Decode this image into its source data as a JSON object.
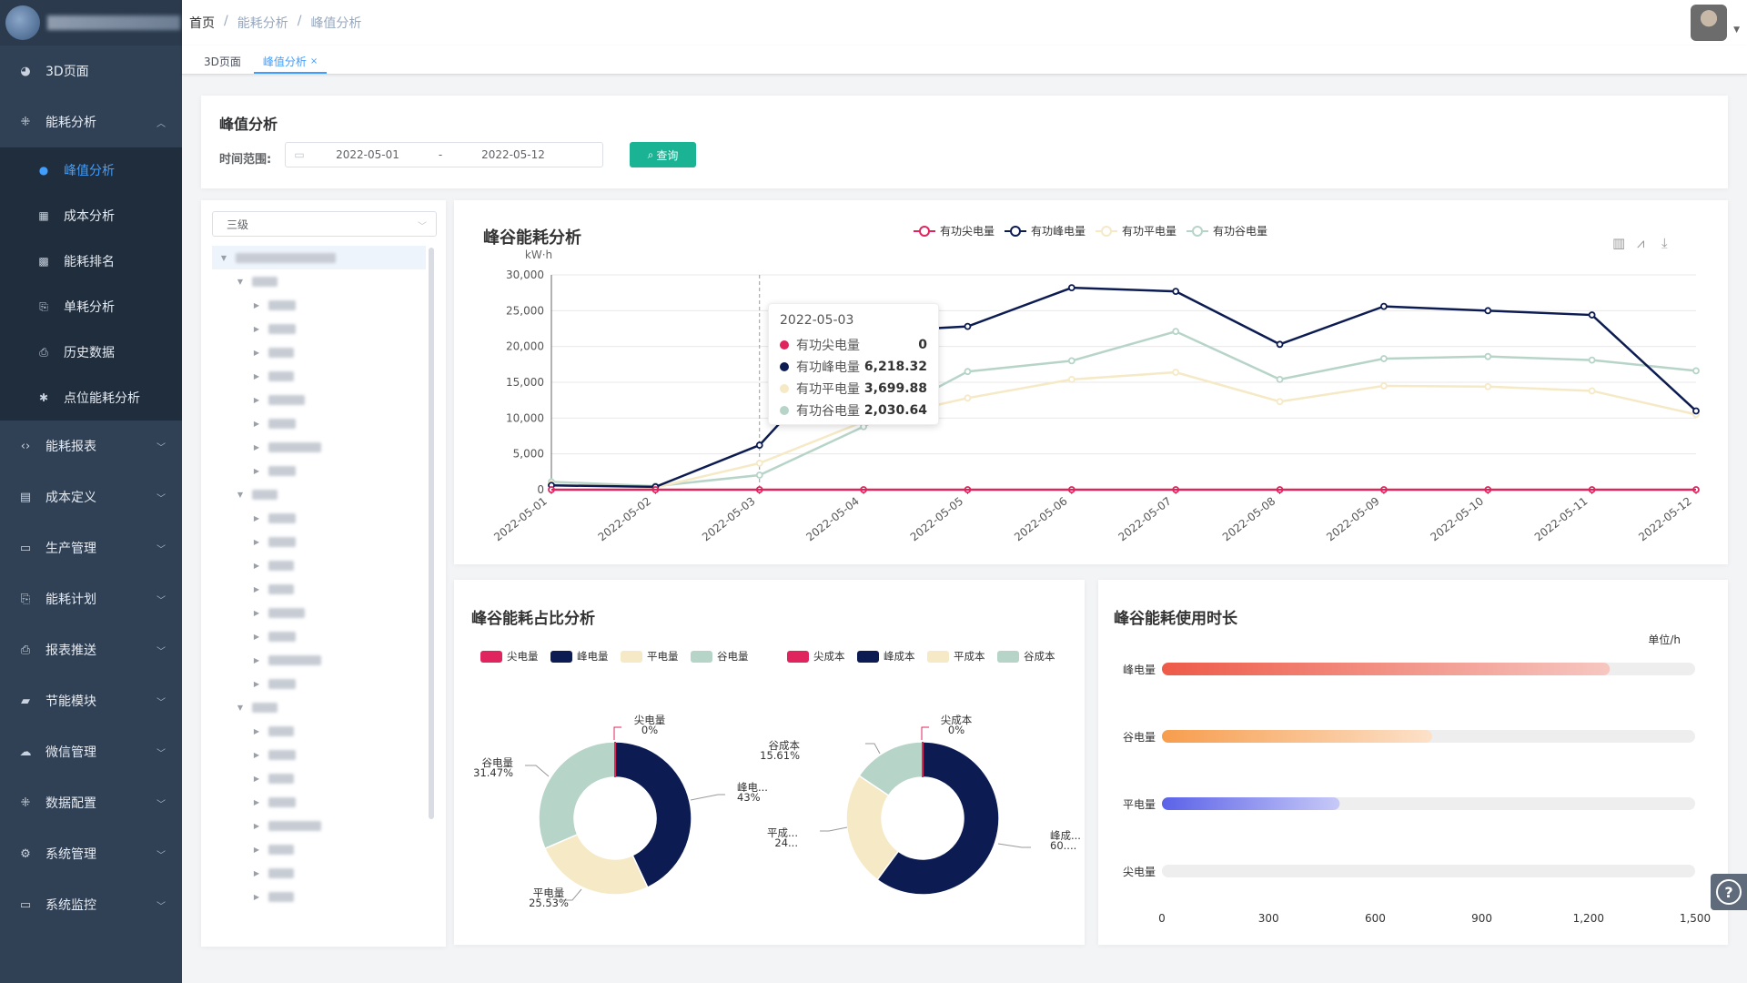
{
  "sidebar": {
    "menu": [
      {
        "label": "3D页面",
        "icon": "dashboard-icon",
        "glyph": "◕",
        "expanded": false,
        "has_arrow": false
      },
      {
        "label": "能耗分析",
        "icon": "analysis-icon",
        "glyph": "⁜",
        "expanded": true,
        "has_arrow": true,
        "children": [
          {
            "label": "峰值分析",
            "icon": "info-icon",
            "glyph": "●",
            "active": true
          },
          {
            "label": "成本分析",
            "icon": "table-icon",
            "glyph": "▦",
            "active": false
          },
          {
            "label": "能耗排名",
            "icon": "grid-icon",
            "glyph": "▩",
            "active": false
          },
          {
            "label": "单耗分析",
            "icon": "document-icon",
            "glyph": "⎘",
            "active": false
          },
          {
            "label": "历史数据",
            "icon": "file-icon",
            "glyph": "⎙",
            "active": false
          },
          {
            "label": "点位能耗分析",
            "icon": "bug-icon",
            "glyph": "✱",
            "active": false
          }
        ]
      },
      {
        "label": "能耗报表",
        "icon": "code-icon",
        "glyph": "‹›",
        "has_arrow": true
      },
      {
        "label": "成本定义",
        "icon": "book-icon",
        "glyph": "▤",
        "has_arrow": true
      },
      {
        "label": "生产管理",
        "icon": "monitor-icon",
        "glyph": "▭",
        "has_arrow": true
      },
      {
        "label": "能耗计划",
        "icon": "clipboard-icon",
        "glyph": "⎘",
        "has_arrow": true
      },
      {
        "label": "报表推送",
        "icon": "file-icon",
        "glyph": "⎙",
        "has_arrow": true
      },
      {
        "label": "节能模块",
        "icon": "lock-icon",
        "glyph": "▰",
        "has_arrow": true
      },
      {
        "label": "微信管理",
        "icon": "wechat-icon",
        "glyph": "☁",
        "has_arrow": true
      },
      {
        "label": "数据配置",
        "icon": "tools-icon",
        "glyph": "⁜",
        "has_arrow": true
      },
      {
        "label": "系统管理",
        "icon": "gear-icon",
        "glyph": "⚙",
        "has_arrow": true
      },
      {
        "label": "系统监控",
        "icon": "monitor-icon",
        "glyph": "▭",
        "has_arrow": true
      }
    ]
  },
  "breadcrumb": [
    "首页",
    "能耗分析",
    "峰值分析"
  ],
  "tags": [
    {
      "label": "3D页面",
      "active": false
    },
    {
      "label": "峰值分析",
      "active": true,
      "close": "×"
    }
  ],
  "filter": {
    "title": "峰值分析",
    "label": "时间范围:",
    "start_date": "2022-05-01",
    "separator": "-",
    "end_date": "2022-05-12",
    "query_label": "查询"
  },
  "tree": {
    "select_value": "三级",
    "nodes": [
      {
        "level": 0,
        "expanded": true,
        "w": 110
      },
      {
        "level": 1,
        "expanded": true,
        "w": 28
      },
      {
        "level": 2,
        "w": 30
      },
      {
        "level": 2,
        "w": 30
      },
      {
        "level": 2,
        "w": 28
      },
      {
        "level": 2,
        "w": 28
      },
      {
        "level": 2,
        "w": 40
      },
      {
        "level": 2,
        "w": 30
      },
      {
        "level": 2,
        "w": 58
      },
      {
        "level": 2,
        "w": 30
      },
      {
        "level": 1,
        "expanded": true,
        "w": 28
      },
      {
        "level": 2,
        "w": 30
      },
      {
        "level": 2,
        "w": 30
      },
      {
        "level": 2,
        "w": 28
      },
      {
        "level": 2,
        "w": 28
      },
      {
        "level": 2,
        "w": 40
      },
      {
        "level": 2,
        "w": 30
      },
      {
        "level": 2,
        "w": 58
      },
      {
        "level": 2,
        "w": 30
      },
      {
        "level": 1,
        "expanded": true,
        "w": 28
      },
      {
        "level": 2,
        "w": 28
      },
      {
        "level": 2,
        "w": 30
      },
      {
        "level": 2,
        "w": 28
      },
      {
        "level": 2,
        "w": 30
      },
      {
        "level": 2,
        "w": 58
      },
      {
        "level": 2,
        "w": 28
      },
      {
        "level": 2,
        "w": 28
      },
      {
        "level": 2,
        "w": 28
      }
    ]
  },
  "line_chart": {
    "title": "峰谷能耗分析",
    "unit": "kW·h",
    "tooltip": {
      "date": "2022-05-03",
      "rows": [
        {
          "name": "有功尖电量",
          "value": "0",
          "color": "#e0245e"
        },
        {
          "name": "有功峰电量",
          "value": "6,218.32",
          "color": "#0c1c52"
        },
        {
          "name": "有功平电量",
          "value": "3,699.88",
          "color": "#f5e9c6"
        },
        {
          "name": "有功谷电量",
          "value": "2,030.64",
          "color": "#b7d4c8"
        }
      ]
    }
  },
  "pie_card": {
    "title": "峰谷能耗占比分析"
  },
  "bar_card": {
    "title": "峰谷能耗使用时长",
    "unit": "单位/h"
  },
  "chart_data": [
    {
      "type": "line",
      "title": "峰谷能耗分析",
      "ylabel": "kW·h",
      "x": [
        "2022-05-01",
        "2022-05-02",
        "2022-05-03",
        "2022-05-04",
        "2022-05-05",
        "2022-05-06",
        "2022-05-07",
        "2022-05-08",
        "2022-05-09",
        "2022-05-10",
        "2022-05-11",
        "2022-05-12"
      ],
      "ylim": [
        0,
        30000
      ],
      "yticks": [
        "0",
        "5,000",
        "10,000",
        "15,000",
        "20,000",
        "25,000",
        "30,000"
      ],
      "legend_position": "top",
      "series": [
        {
          "name": "有功尖电量",
          "color": "#e0245e",
          "values": [
            0,
            0,
            0,
            0,
            0,
            0,
            0,
            0,
            0,
            0,
            0,
            0
          ]
        },
        {
          "name": "有功峰电量",
          "color": "#0c1c52",
          "values": [
            600,
            400,
            6218,
            22000,
            22800,
            28200,
            27700,
            20300,
            25600,
            25000,
            24400,
            11000
          ]
        },
        {
          "name": "有功平电量",
          "color": "#f5e9c6",
          "values": [
            800,
            300,
            3700,
            9500,
            12800,
            15400,
            16400,
            12300,
            14500,
            14400,
            13800,
            10500
          ]
        },
        {
          "name": "有功谷电量",
          "color": "#b7d4c8",
          "values": [
            1100,
            500,
            2031,
            8800,
            16500,
            18000,
            22100,
            15400,
            18300,
            18600,
            18100,
            16600
          ]
        }
      ]
    },
    {
      "type": "pie",
      "legend": [
        "尖电量",
        "峰电量",
        "平电量",
        "谷电量"
      ],
      "labels": [
        "尖电量",
        "峰电...",
        "平电量",
        "谷电量"
      ],
      "label_values": [
        "0%",
        "43%",
        "25.53%",
        "31.47%"
      ],
      "values": [
        0,
        43,
        25.53,
        31.47
      ],
      "colors": [
        "#e0245e",
        "#0c1c52",
        "#f5e9c6",
        "#b7d4c8"
      ]
    },
    {
      "type": "pie",
      "legend": [
        "尖成本",
        "峰成本",
        "平成本",
        "谷成本"
      ],
      "labels": [
        "尖成本",
        "峰成...",
        "平成...",
        "谷成本"
      ],
      "label_values": [
        "0%",
        "60....",
        "24...",
        "15.61%"
      ],
      "values": [
        0,
        60.12,
        24.27,
        15.61
      ],
      "colors": [
        "#e0245e",
        "#0c1c52",
        "#f5e9c6",
        "#b7d4c8"
      ]
    },
    {
      "type": "bar",
      "orientation": "horizontal",
      "categories": [
        "峰电量",
        "谷电量",
        "平电量",
        "尖电量"
      ],
      "values": [
        1260,
        760,
        500,
        0
      ],
      "xlim": [
        0,
        1500
      ],
      "xticks": [
        "0",
        "300",
        "600",
        "900",
        "1,200",
        "1,500"
      ],
      "unit": "单位/h"
    }
  ]
}
